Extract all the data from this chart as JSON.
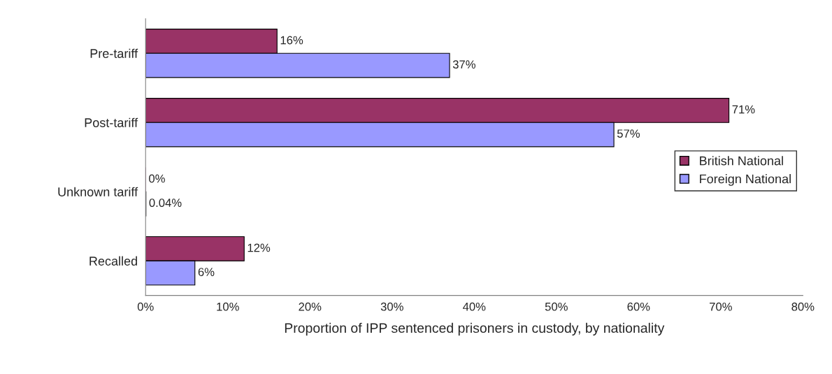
{
  "chart_data": {
    "type": "bar",
    "orientation": "horizontal",
    "xlabel": "Proportion of IPP sentenced prisoners in custody, by nationality",
    "categories": [
      "Pre-tariff",
      "Post-tariff",
      "Unknown tariff",
      "Recalled"
    ],
    "series": [
      {
        "name": "British National",
        "color": "#993366",
        "values": [
          16,
          71,
          0,
          12
        ],
        "value_labels": [
          "16%",
          "71%",
          "0%",
          "12%"
        ]
      },
      {
        "name": "Foreign National",
        "color": "#9999ff",
        "values": [
          37,
          57,
          0.04,
          6
        ],
        "value_labels": [
          "37%",
          "57%",
          "0.04%",
          "6%"
        ]
      }
    ],
    "xlim": [
      0,
      80
    ],
    "xticks": [
      {
        "value": 0,
        "label": "0%"
      },
      {
        "value": 10,
        "label": "10%"
      },
      {
        "value": 20,
        "label": "20%"
      },
      {
        "value": 30,
        "label": "30%"
      },
      {
        "value": 40,
        "label": "40%"
      },
      {
        "value": 50,
        "label": "50%"
      },
      {
        "value": 60,
        "label": "60%"
      },
      {
        "value": 70,
        "label": "70%"
      },
      {
        "value": 80,
        "label": "80%"
      }
    ],
    "grid": false,
    "legend": "right"
  }
}
